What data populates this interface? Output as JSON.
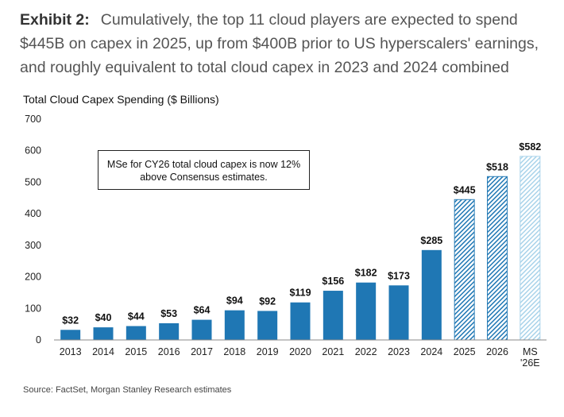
{
  "exhibit_label": "Exhibit 2:",
  "exhibit_text": "Cumulatively, the top 11 cloud players are expected to spend $445B on capex in 2025, up from $400B prior to US hyperscalers' earnings, and roughly equivalent to total cloud capex in 2023 and 2024 combined",
  "source": "Source: FactSet, Morgan Stanley Research estimates",
  "colors": {
    "solid": "#1f77b4",
    "forecast": "#2b7fb8",
    "ms_estimate": "#a9d3ea"
  },
  "chart_data": {
    "type": "bar",
    "title": "Total Cloud Capex Spending ($ Billions)",
    "xlabel": "",
    "ylabel": "",
    "ylim": [
      0,
      700
    ],
    "yticks": [
      0,
      100,
      200,
      300,
      400,
      500,
      600,
      700
    ],
    "grid": false,
    "categories": [
      "2013",
      "2014",
      "2015",
      "2016",
      "2017",
      "2018",
      "2019",
      "2020",
      "2021",
      "2022",
      "2023",
      "2024",
      "2025",
      "2026",
      "MS\n'26E"
    ],
    "values": [
      32,
      40,
      44,
      53,
      64,
      94,
      92,
      119,
      156,
      182,
      173,
      285,
      445,
      518,
      582
    ],
    "value_labels": [
      "$32",
      "$40",
      "$44",
      "$53",
      "$64",
      "$94",
      "$92",
      "$119",
      "$156",
      "$182",
      "$173",
      "$285",
      "$445",
      "$518",
      "$582"
    ],
    "bar_styles": [
      "solid",
      "solid",
      "solid",
      "solid",
      "solid",
      "solid",
      "solid",
      "solid",
      "solid",
      "solid",
      "solid",
      "solid",
      "hatched",
      "hatched",
      "light-hatched"
    ],
    "annotation": "MSe for CY26 total cloud capex is now 12% above Consensus estimates."
  }
}
